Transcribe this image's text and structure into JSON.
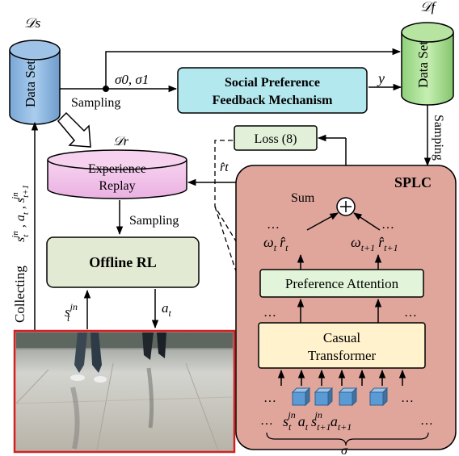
{
  "datasets": {
    "source": {
      "label": "Data Set",
      "symbol": "𝒟s"
    },
    "final": {
      "label": "Data Set",
      "symbol": "𝒟f"
    },
    "replay": {
      "label_line1": "Experience",
      "label_line2": "Replay",
      "symbol": "𝒟r"
    }
  },
  "edges": {
    "sampling_left": "Sampling",
    "sigma": "σ0, σ1",
    "y": "y",
    "samping_right": "Samping",
    "sampling_mid": "Sampling",
    "collecting": "Collecting",
    "collect_vars": "s_t^jn, a_t, s_t+1^jn",
    "s_in": "s_t^jn",
    "a_out": "a_t",
    "r_hat": "r̂t"
  },
  "boxes": {
    "feedback_line1": "Social Preference",
    "feedback_line2": "Feedback Mechanism",
    "loss": "Loss  (8)",
    "offline_rl": "Offline RL",
    "pref_attention": "Preference Attention",
    "transformer_line1": "Casual",
    "transformer_line2": "Transformer"
  },
  "splc": {
    "title": "SPLC",
    "sum_label": "Sum",
    "plus": "+",
    "omega_t": "ω",
    "omega_t1": "ω",
    "ellipsis": "…",
    "sequence_sigma": "σ",
    "tokens": [
      "s",
      "a",
      "s",
      "a"
    ]
  },
  "colors": {
    "cyl_blue": "#9dc3e6",
    "cyl_green": "#b7e4a0",
    "cyl_pink": "#f4c6ec",
    "feedback_box": "#b3e8ee",
    "loss_box": "#e2f0d9",
    "offline_box": "#e2ead3",
    "pref_box": "#e2f5da",
    "transformer_box": "#fff2cc",
    "splc_bg": "#e0a69c"
  }
}
